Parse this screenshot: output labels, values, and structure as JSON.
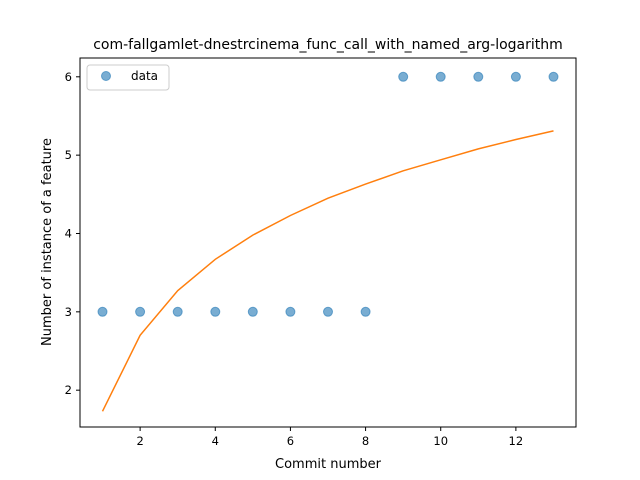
{
  "chart_data": {
    "type": "scatter",
    "title": "com-fallgamlet-dnestrcinema_func_call_with_named_arg-logarithm",
    "xlabel": "Commit number",
    "ylabel": "Number of instance of a feature",
    "xlim": [
      0.4,
      13.6
    ],
    "ylim": [
      1.53,
      6.24
    ],
    "xticks": [
      2,
      4,
      6,
      8,
      10,
      12
    ],
    "yticks": [
      2,
      3,
      4,
      5,
      6
    ],
    "grid": false,
    "legend": {
      "placement": "top-left",
      "entries": [
        "data"
      ]
    },
    "series": [
      {
        "name": "data",
        "kind": "scatter",
        "color": "#1f77b4",
        "x": [
          1,
          2,
          3,
          4,
          5,
          6,
          7,
          8,
          9,
          10,
          11,
          12,
          13
        ],
        "y": [
          3,
          3,
          3,
          3,
          3,
          3,
          3,
          3,
          6,
          6,
          6,
          6,
          6
        ]
      },
      {
        "kind": "line",
        "color": "#ff7f0e",
        "x": [
          1,
          2,
          3,
          4,
          5,
          6,
          7,
          8,
          9,
          10,
          11,
          12,
          13
        ],
        "y": [
          1.73,
          2.7,
          3.27,
          3.67,
          3.98,
          4.23,
          4.45,
          4.63,
          4.8,
          4.94,
          5.08,
          5.2,
          5.31
        ]
      }
    ]
  }
}
